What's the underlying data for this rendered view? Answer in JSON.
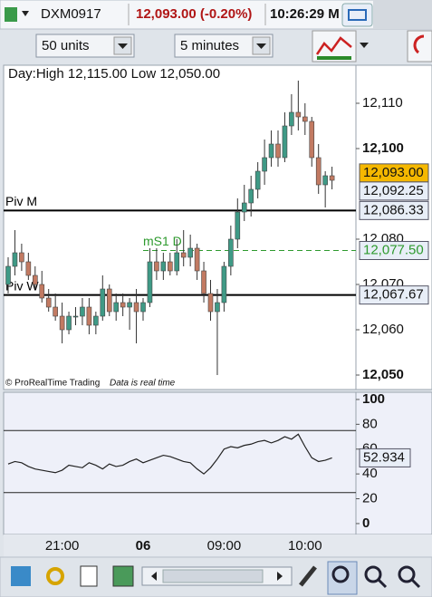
{
  "toolbar": {
    "instrument": "DXM0917",
    "price": "12,093.00 (-0.20%)",
    "time": "10:26:29 M",
    "units": "50 units",
    "interval": "5 minutes"
  },
  "chart_data": [
    {
      "type": "candlestick",
      "annotation": "Day:High 12,115.00 Low 12,050.00",
      "footer": "© ProRealTime Trading",
      "note": "Data is real time",
      "categories": [
        null,
        null,
        null,
        null,
        null,
        null,
        null,
        null,
        "21:00",
        null,
        null,
        null,
        null,
        null,
        null,
        null,
        null,
        null,
        null,
        null,
        "06",
        null,
        null,
        null,
        null,
        null,
        null,
        null,
        null,
        null,
        null,
        null,
        "09:00",
        null,
        null,
        null,
        null,
        null,
        null,
        null,
        null,
        null,
        null,
        null,
        "10:00",
        null,
        null,
        null,
        null
      ],
      "open": [
        12070,
        12074,
        12077,
        12075,
        12072,
        12070,
        12067,
        12065,
        12063,
        12060,
        12063,
        12063,
        12065,
        12061,
        12063,
        12069,
        12064,
        12066,
        12065,
        12066,
        12064,
        12066,
        12075,
        12073,
        12075,
        12073,
        12077,
        12076,
        12078,
        12073,
        12068,
        12064,
        12066,
        12074,
        12080,
        12086,
        12088,
        12091,
        12095,
        12098,
        12101,
        12098,
        12105,
        12108,
        12107,
        12106,
        12098,
        12092,
        12094
      ],
      "high": [
        12076,
        12082,
        12079,
        12077,
        12074,
        12073,
        12069,
        12068,
        12066,
        12064,
        12065,
        12067,
        12067,
        12064,
        12072,
        12070,
        12068,
        12068,
        12067,
        12069,
        12067,
        12078,
        12078,
        12077,
        12077,
        12080,
        12082,
        12081,
        12079,
        12075,
        12071,
        12069,
        12075,
        12083,
        12089,
        12092,
        12094,
        12097,
        12102,
        12104,
        12104,
        12108,
        12112,
        12115,
        12110,
        12107,
        12101,
        12095,
        12096
      ],
      "low": [
        12068,
        12072,
        12073,
        12071,
        12069,
        12066,
        12064,
        12062,
        12057,
        12059,
        12061,
        12061,
        12059,
        12059,
        12062,
        12063,
        12062,
        12063,
        12060,
        12057,
        12062,
        12065,
        12071,
        12071,
        12072,
        12072,
        12074,
        12074,
        12071,
        12066,
        12062,
        12050,
        12064,
        12072,
        12078,
        12084,
        12085,
        12089,
        12092,
        12096,
        12096,
        12097,
        12103,
        12104,
        12103,
        12096,
        12090,
        12087,
        12091
      ],
      "close": [
        12074,
        12077,
        12075,
        12072,
        12070,
        12067,
        12065,
        12063,
        12060,
        12063,
        12063,
        12065,
        12061,
        12063,
        12069,
        12064,
        12066,
        12065,
        12066,
        12064,
        12066,
        12075,
        12073,
        12075,
        12073,
        12077,
        12076,
        12078,
        12073,
        12068,
        12064,
        12066,
        12074,
        12080,
        12086,
        12088,
        12091,
        12095,
        12098,
        12101,
        12098,
        12105,
        12108,
        12107,
        12106,
        12098,
        12092,
        12094,
        12093
      ],
      "colors": {
        "up": "#3f9a86",
        "down": "#c27a62"
      },
      "ylim": [
        12046.8,
        12118.4
      ],
      "yticks": [
        {
          "value": 12110,
          "label": "12,110"
        },
        {
          "value": 12100,
          "label": "12,100"
        },
        {
          "value": 12080,
          "label": "12,080"
        },
        {
          "value": 12070,
          "label": "12,070"
        },
        {
          "value": 12060,
          "label": "12,060"
        },
        {
          "value": 12050,
          "label": "12,050"
        }
      ],
      "lines": [
        {
          "name": "Piv M",
          "value": 12086.33,
          "color": "#000000",
          "dashed": false
        },
        {
          "name": "mS1 D",
          "value": 12077.5,
          "color": "#2e9a2e",
          "dashed": true
        },
        {
          "name": "Piv W",
          "value": 12067.67,
          "color": "#000000",
          "dashed": false
        }
      ],
      "price_labels": [
        {
          "value": 12093,
          "label": "12,093.00",
          "color": "#f5b800"
        },
        {
          "value": 12092.25,
          "label": "12,092.25",
          "color": "#e8eef7"
        },
        {
          "value": 12086.33,
          "label": "12,086.33",
          "color": "#e8eef7"
        },
        {
          "value": 12077.5,
          "label": "12,077.50",
          "color": "#e8eef7"
        },
        {
          "value": 12067.67,
          "label": "12,067.67",
          "color": "#e8eef7"
        }
      ]
    },
    {
      "type": "line",
      "values": [
        48,
        50,
        49,
        46,
        44,
        43,
        42,
        41,
        43,
        47,
        46,
        45,
        49,
        47,
        44,
        48,
        46,
        47,
        50,
        52,
        49,
        51,
        53,
        55,
        54,
        52,
        50,
        49,
        44,
        40,
        45,
        52,
        60,
        62,
        61,
        63,
        64,
        66,
        67,
        65,
        67,
        70,
        68,
        72,
        62,
        53,
        50,
        51,
        52.934
      ],
      "color": "#222222",
      "levels": [
        75,
        25
      ],
      "ylim": [
        -8.8,
        105.8
      ],
      "yticks": [
        0,
        20,
        40,
        60,
        80,
        100
      ]
    }
  ]
}
